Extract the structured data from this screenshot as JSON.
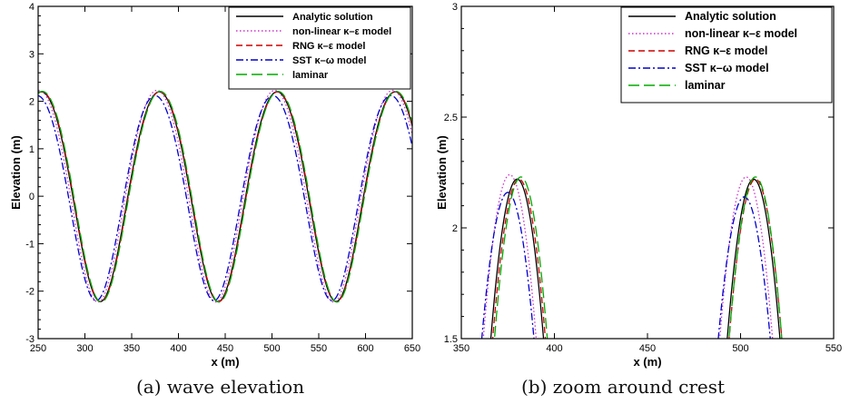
{
  "captions": [
    "(a) wave elevation",
    "(b) zoom around crest"
  ],
  "chart_data": [
    {
      "type": "line",
      "xlabel": "x (m)",
      "ylabel": "Elevation (m)",
      "xlim": [
        250,
        650
      ],
      "ylim": [
        -3,
        4
      ],
      "xticks": [
        250,
        300,
        350,
        400,
        450,
        500,
        550,
        600,
        650
      ],
      "yticks": [
        -3,
        -2,
        -1,
        0,
        1,
        2,
        3,
        4
      ],
      "legend_position": "top-right",
      "wave": {
        "amplitude": 2.1,
        "wavelength": 126,
        "crest_x": 379.5
      },
      "series": [
        {
          "name": "Analytic solution",
          "color": "#000000",
          "dash": "solid",
          "shift": 0,
          "amp": 2.21,
          "mean": 0.11
        },
        {
          "name": "non-linear κ–ε model",
          "color": "#cc33cc",
          "dash": "dotted",
          "shift": -2.5,
          "amp": 2.23,
          "mean": 0.12
        },
        {
          "name": "RNG κ–ε model",
          "color": "#cc0000",
          "dash": "dashed",
          "shift": 0.5,
          "amp": 2.21,
          "mean": 0.11
        },
        {
          "name": "SST κ–ω model",
          "color": "#0000cc",
          "dash": "dashdot",
          "shift": -4.5,
          "amp": 2.16,
          "mean": 0.08
        },
        {
          "name": "laminar",
          "color": "#00aa00",
          "dash": "longdash",
          "shift": 1,
          "amp": 2.22,
          "mean": 0.11
        }
      ]
    },
    {
      "type": "line",
      "xlabel": "x (m)",
      "ylabel": "Elevation (m)",
      "xlim": [
        350,
        550
      ],
      "ylim": [
        1.5,
        3
      ],
      "xticks": [
        350,
        400,
        450,
        500,
        550
      ],
      "yticks": [
        1.5,
        2,
        2.5,
        3
      ],
      "legend_position": "top-right",
      "crests": [
        {
          "name": "Analytic solution",
          "color": "#000000",
          "dash": "solid",
          "peaks": [
            [
              380,
              2.22
            ],
            [
              507,
              2.22
            ]
          ]
        },
        {
          "name": "non-linear κ–ε model",
          "color": "#cc33cc",
          "dash": "dotted",
          "peaks": [
            [
              376,
              2.24
            ],
            [
              503,
              2.23
            ]
          ]
        },
        {
          "name": "RNG κ–ε model",
          "color": "#cc0000",
          "dash": "dashed",
          "peaks": [
            [
              381,
              2.22
            ],
            [
              508,
              2.22
            ]
          ]
        },
        {
          "name": "SST κ–ω model",
          "color": "#0000cc",
          "dash": "dashdot",
          "peaks": [
            [
              375,
              2.16
            ],
            [
              502,
              2.14
            ]
          ]
        },
        {
          "name": "laminar",
          "color": "#00aa00",
          "dash": "longdash",
          "peaks": [
            [
              382,
              2.23
            ],
            [
              508,
              2.23
            ]
          ]
        }
      ]
    }
  ]
}
